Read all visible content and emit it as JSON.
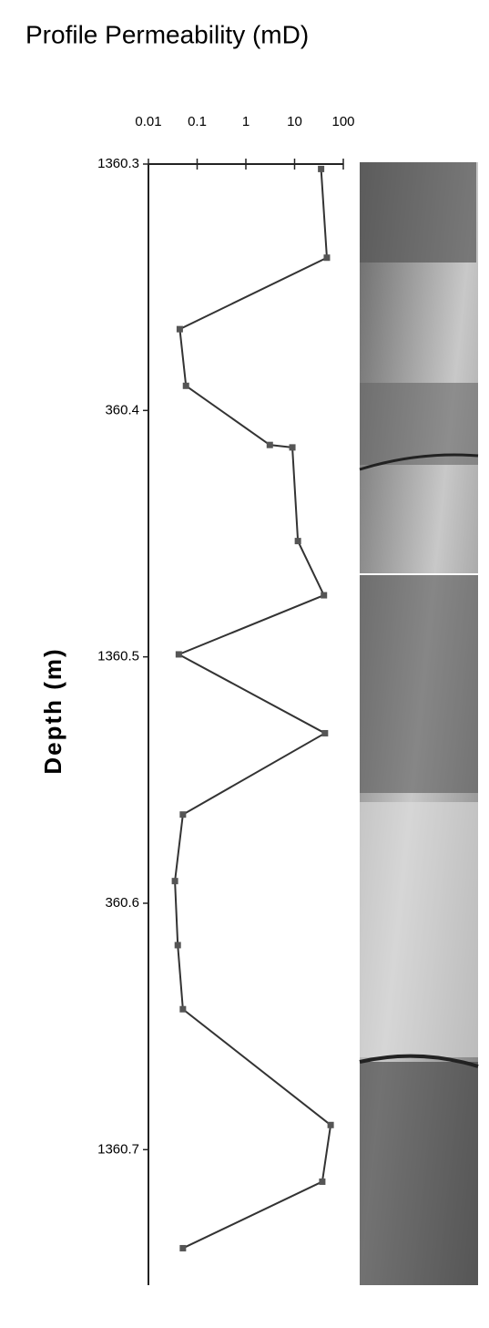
{
  "chart_data": {
    "type": "line",
    "title": "Profile Permeability (mD)",
    "y_label": "Depth (m)",
    "xscale": "log",
    "xlim": [
      0.01,
      100
    ],
    "xticks": [
      0.01,
      0.1,
      1,
      10,
      100
    ],
    "ylim": [
      1360.3,
      1360.755
    ],
    "y_inverted": true,
    "yticks": [
      1360.3,
      {
        "value": 1360.4,
        "label": "360.4"
      },
      1360.5,
      {
        "value": 1360.6,
        "label": "360.6"
      },
      1360.7
    ],
    "series": [
      {
        "color": "#333333",
        "x": [
          35,
          46,
          0.044,
          0.059,
          3.1,
          9,
          11.7,
          40,
          0.042,
          42,
          0.051,
          0.035,
          0.04,
          0.051,
          55,
          37,
          0.051
        ],
        "values": [
          1360.302,
          1360.338,
          1360.367,
          1360.39,
          1360.414,
          1360.415,
          1360.453,
          1360.475,
          1360.499,
          1360.531,
          1360.564,
          1360.591,
          1360.617,
          1360.643,
          1360.69,
          1360.713,
          1360.74
        ]
      }
    ]
  }
}
